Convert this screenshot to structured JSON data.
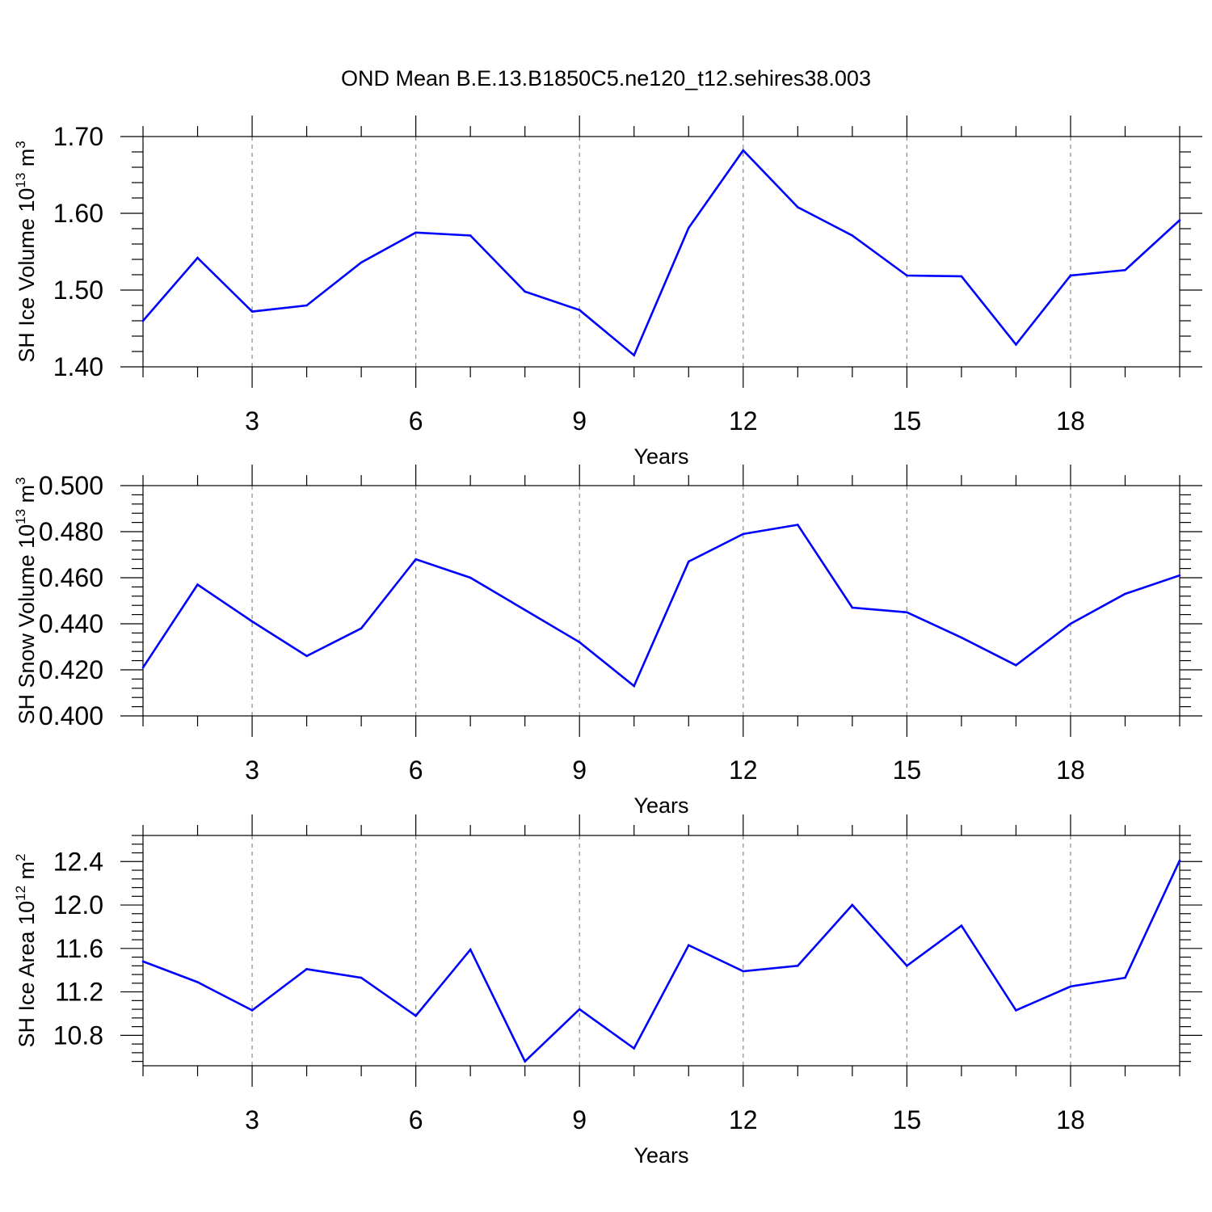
{
  "page_title": "OND Mean B.E.13.B1850C5.ne120_t12.sehires38.003",
  "colors": {
    "series": "#0000ff",
    "axes": "#000000",
    "grid": "#8a8a8a"
  },
  "chart_data": [
    {
      "type": "line",
      "title": "OND Mean B.E.13.B1850C5.ne120_t12.sehires38.003",
      "xlabel": "Years",
      "ylabel": {
        "main": "SH Ice Volume 10",
        "sup1": "13",
        "mid": " m",
        "sup2": "3"
      },
      "xlim": [
        1,
        20
      ],
      "ylim": [
        1.4,
        1.7
      ],
      "x_ticks": [
        3,
        6,
        9,
        12,
        15,
        18
      ],
      "x_tick_labels": [
        "3",
        "6",
        "9",
        "12",
        "15",
        "18"
      ],
      "y_ticks": [
        1.4,
        1.5,
        1.6,
        1.7
      ],
      "y_tick_labels": [
        "1.40",
        "1.50",
        "1.60",
        "1.70"
      ],
      "grid": "vertical dashed at major x ticks",
      "x": [
        1,
        2,
        3,
        4,
        5,
        6,
        7,
        8,
        9,
        10,
        11,
        12,
        13,
        14,
        15,
        16,
        17,
        18,
        19,
        20
      ],
      "values": [
        1.46,
        1.542,
        1.472,
        1.48,
        1.536,
        1.575,
        1.571,
        1.498,
        1.474,
        1.415,
        1.581,
        1.682,
        1.608,
        1.571,
        1.519,
        1.518,
        1.429,
        1.519,
        1.526,
        1.591
      ]
    },
    {
      "type": "line",
      "xlabel": "Years",
      "ylabel": {
        "main": "SH Snow Volume 10",
        "sup1": "13",
        "mid": " m",
        "sup2": "3"
      },
      "xlim": [
        1,
        20
      ],
      "ylim": [
        0.4,
        0.5
      ],
      "x_ticks": [
        3,
        6,
        9,
        12,
        15,
        18
      ],
      "x_tick_labels": [
        "3",
        "6",
        "9",
        "12",
        "15",
        "18"
      ],
      "y_ticks": [
        0.4,
        0.42,
        0.44,
        0.46,
        0.48,
        0.5
      ],
      "y_tick_labels": [
        "0.400",
        "0.420",
        "0.440",
        "0.460",
        "0.480",
        "0.500"
      ],
      "grid": "vertical dashed at major x ticks",
      "x": [
        1,
        2,
        3,
        4,
        5,
        6,
        7,
        8,
        9,
        10,
        11,
        12,
        13,
        14,
        15,
        16,
        17,
        18,
        19,
        20
      ],
      "values": [
        0.421,
        0.457,
        0.441,
        0.426,
        0.438,
        0.468,
        0.46,
        0.446,
        0.432,
        0.413,
        0.467,
        0.479,
        0.483,
        0.447,
        0.445,
        0.434,
        0.422,
        0.44,
        0.453,
        0.461
      ]
    },
    {
      "type": "line",
      "xlabel": "Years",
      "ylabel": {
        "main": "SH Ice Area 10",
        "sup1": "12",
        "mid": " m",
        "sup2": "2"
      },
      "xlim": [
        1,
        20
      ],
      "ylim": [
        10.52,
        12.64
      ],
      "x_ticks": [
        3,
        6,
        9,
        12,
        15,
        18
      ],
      "x_tick_labels": [
        "3",
        "6",
        "9",
        "12",
        "15",
        "18"
      ],
      "y_ticks": [
        10.8,
        11.2,
        11.6,
        12.0,
        12.4
      ],
      "y_tick_labels": [
        "10.8",
        "11.2",
        "11.6",
        "12.0",
        "12.4"
      ],
      "grid": "vertical dashed at major x ticks",
      "x": [
        1,
        2,
        3,
        4,
        5,
        6,
        7,
        8,
        9,
        10,
        11,
        12,
        13,
        14,
        15,
        16,
        17,
        18,
        19,
        20
      ],
      "values": [
        11.48,
        11.29,
        11.03,
        11.41,
        11.33,
        10.98,
        11.59,
        10.56,
        11.04,
        10.68,
        11.63,
        11.39,
        11.44,
        12.0,
        11.44,
        11.81,
        11.03,
        11.25,
        11.33,
        12.41
      ]
    }
  ]
}
